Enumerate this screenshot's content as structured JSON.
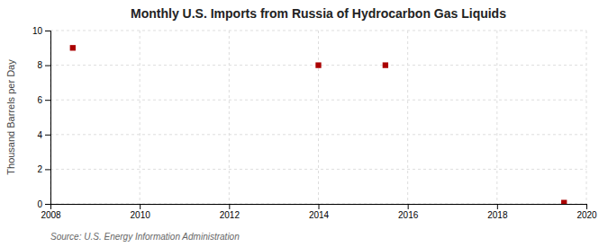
{
  "chart_data": {
    "type": "scatter",
    "title": "Monthly U.S. Imports from Russia of Hydrocarbon Gas Liquids",
    "ylabel": "Thousand Barrels per Day",
    "source": "Source: U.S. Energy Information Administration",
    "x": [
      2008.5,
      2014.0,
      2015.5,
      2019.5
    ],
    "values": [
      9.0,
      8.0,
      8.0,
      0.07
    ],
    "color": "#aa0000",
    "marker": "square",
    "xlim": [
      2008,
      2020
    ],
    "ylim": [
      0,
      10
    ],
    "xticks": [
      2008,
      2010,
      2012,
      2014,
      2016,
      2018,
      2020
    ],
    "yticks": [
      0,
      2,
      4,
      6,
      8,
      10
    ],
    "grid": true
  }
}
